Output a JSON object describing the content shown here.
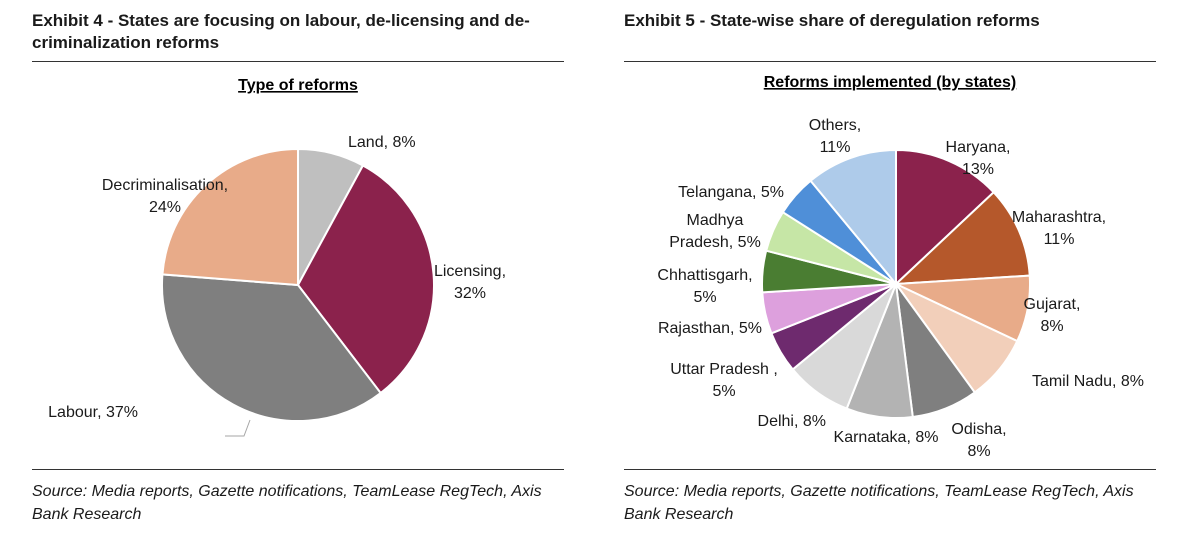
{
  "exhibit4": {
    "heading": "Exhibit 4 - States are focusing on labour, de-licensing and de-criminalization reforms",
    "source": "Source: Media reports, Gazette notifications, TeamLease RegTech, Axis Bank Research"
  },
  "exhibit5": {
    "heading": "Exhibit 5 - State-wise share of deregulation reforms",
    "source": "Source: Media reports, Gazette notifications, TeamLease RegTech, Axis Bank Research"
  },
  "chart_data": [
    {
      "type": "pie",
      "title": "Type of reforms",
      "start_angle_deg": 0,
      "direction": "clockwise",
      "slices": [
        {
          "label": "Land",
          "value": 8,
          "color": "#bfbfbf",
          "text": [
            "Land, 8%"
          ]
        },
        {
          "label": "Licensing",
          "value": 32,
          "color": "#8b224c",
          "text": [
            "Licensing,",
            "32%"
          ]
        },
        {
          "label": "Labour",
          "value": 37,
          "color": "#7f7f7f",
          "text": [
            "Labour, 37%"
          ]
        },
        {
          "label": "Decriminalisation",
          "value": 24,
          "color": "#e8ab89",
          "text": [
            "Decriminalisation,",
            "24%"
          ]
        }
      ]
    },
    {
      "type": "pie",
      "title": "Reforms implemented (by states)",
      "start_angle_deg": 0,
      "direction": "clockwise",
      "slices": [
        {
          "label": "Haryana",
          "value": 13,
          "color": "#8b224c",
          "text": [
            "Haryana,",
            "13%"
          ]
        },
        {
          "label": "Maharashtra",
          "value": 11,
          "color": "#b5582b",
          "text": [
            "Maharashtra,",
            "11%"
          ]
        },
        {
          "label": "Gujarat",
          "value": 8,
          "color": "#e8ab89",
          "text": [
            "Gujarat,",
            "8%"
          ]
        },
        {
          "label": "Tamil Nadu",
          "value": 8,
          "color": "#f2cfba",
          "text": [
            "Tamil Nadu, 8%"
          ]
        },
        {
          "label": "Odisha",
          "value": 8,
          "color": "#7f7f7f",
          "text": [
            "Odisha,",
            "8%"
          ]
        },
        {
          "label": "Karnataka",
          "value": 8,
          "color": "#b3b3b3",
          "text": [
            "Karnataka, 8%"
          ]
        },
        {
          "label": "Delhi",
          "value": 8,
          "color": "#d9d9d9",
          "text": [
            "Delhi, 8%"
          ]
        },
        {
          "label": "Uttar Pradesh",
          "value": 5,
          "color": "#6e2a6e",
          "text": [
            "Uttar Pradesh ,",
            "5%"
          ]
        },
        {
          "label": "Rajasthan",
          "value": 5,
          "color": "#dda0dd",
          "text": [
            "Rajasthan, 5%"
          ]
        },
        {
          "label": "Chhattisgarh",
          "value": 5,
          "color": "#4a7d32",
          "text": [
            "Chhattisgarh,",
            "5%"
          ]
        },
        {
          "label": "Madhya Pradesh",
          "value": 5,
          "color": "#c6e6a6",
          "text": [
            "Madhya",
            "Pradesh, 5%"
          ]
        },
        {
          "label": "Telangana",
          "value": 5,
          "color": "#4f8fd8",
          "text": [
            "Telangana, 5%"
          ]
        },
        {
          "label": "Others",
          "value": 11,
          "color": "#aecbea",
          "text": [
            "Others,",
            "11%"
          ]
        }
      ]
    }
  ]
}
